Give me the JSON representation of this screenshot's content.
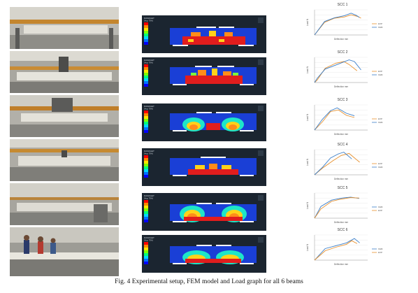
{
  "figure": {
    "caption": "Fig. 4 Experimental setup, FEM model and Load graph for all 6 beams"
  },
  "fem_models": [
    {
      "legend_title": "DAMAGET",
      "legend_sub": "(Avg: 75%)"
    },
    {
      "legend_title": "DAMAGET",
      "legend_sub": "(Avg: 75%)"
    },
    {
      "legend_title": "DAMAGET",
      "legend_sub": "(Avg: 75%)"
    },
    {
      "legend_title": "DAMAGET",
      "legend_sub": "(Avg: 75%)"
    },
    {
      "legend_title": "DAMAGET",
      "legend_sub": "(Avg: 75%)"
    },
    {
      "legend_title": "DAMAGET",
      "legend_sub": "(Avg: 75%)"
    }
  ],
  "chart_data": [
    {
      "type": "line",
      "title": "SCC 1",
      "xlabel": "Deflection mm",
      "ylabel": "Load N",
      "xlim": [
        0,
        1.6
      ],
      "ylim": [
        0,
        300000
      ],
      "series": [
        {
          "name": "EXP",
          "color": "#e8912d",
          "x": [
            0,
            0.3,
            0.6,
            0.9,
            1.1,
            1.3,
            1.4
          ],
          "y": [
            0,
            150000,
            200000,
            215000,
            240000,
            220000,
            200000
          ]
        },
        {
          "name": "FEM",
          "color": "#3a7ec9",
          "x": [
            0,
            0.3,
            0.6,
            0.9,
            1.1,
            1.25,
            1.35
          ],
          "y": [
            0,
            160000,
            205000,
            230000,
            260000,
            235000,
            210000
          ]
        }
      ]
    },
    {
      "type": "line",
      "title": "SCC 2",
      "xlabel": "Deflection mm",
      "ylabel": "Load N",
      "xlim": [
        0,
        2
      ],
      "ylim": [
        0,
        300000
      ],
      "series": [
        {
          "name": "EXP",
          "color": "#e8912d",
          "x": [
            0,
            0.1,
            0.4,
            0.8,
            1.1,
            1.3,
            1.6
          ],
          "y": [
            0,
            30000,
            170000,
            230000,
            250000,
            215000,
            140000
          ]
        },
        {
          "name": "FEM",
          "color": "#3a7ec9",
          "x": [
            0,
            0.1,
            0.4,
            0.9,
            1.3,
            1.5,
            1.75
          ],
          "y": [
            0,
            50000,
            160000,
            220000,
            270000,
            250000,
            150000
          ]
        }
      ]
    },
    {
      "type": "line",
      "title": "SCC 3",
      "xlabel": "Deflection mm",
      "ylabel": "Load N",
      "xlim": [
        0,
        2
      ],
      "ylim": [
        0,
        300000
      ],
      "series": [
        {
          "name": "EXP",
          "color": "#e8912d",
          "x": [
            0,
            0.3,
            0.6,
            0.9,
            1.2,
            1.5
          ],
          "y": [
            0,
            100000,
            220000,
            240000,
            175000,
            150000
          ]
        },
        {
          "name": "FEM",
          "color": "#3a7ec9",
          "x": [
            0,
            0.3,
            0.6,
            0.85,
            1.2,
            1.5
          ],
          "y": [
            0,
            130000,
            230000,
            265000,
            200000,
            170000
          ]
        }
      ]
    },
    {
      "type": "line",
      "title": "SCC 4",
      "xlabel": "Deflection mm",
      "ylabel": "Load N",
      "xlim": [
        0,
        2
      ],
      "ylim": [
        0,
        300000
      ],
      "series": [
        {
          "name": "EXP",
          "color": "#e8912d",
          "x": [
            0,
            0.3,
            0.7,
            1.0,
            1.3,
            1.7
          ],
          "y": [
            0,
            80000,
            170000,
            230000,
            255000,
            150000
          ]
        },
        {
          "name": "FEM",
          "color": "#3a7ec9",
          "x": [
            0,
            0.3,
            0.6,
            0.9,
            1.1,
            1.4
          ],
          "y": [
            0,
            90000,
            200000,
            250000,
            270000,
            190000
          ]
        }
      ]
    },
    {
      "type": "line",
      "title": "SCC 5",
      "xlabel": "Deflection mm",
      "ylabel": "Load N",
      "xlim": [
        0,
        2.5
      ],
      "ylim": [
        0,
        300000
      ],
      "series": [
        {
          "name": "FEM",
          "color": "#3a7ec9",
          "x": [
            0,
            0.3,
            0.8,
            1.3,
            1.7,
            2.1
          ],
          "y": [
            0,
            140000,
            215000,
            240000,
            250000,
            235000
          ]
        },
        {
          "name": "EXP",
          "color": "#e8912d",
          "x": [
            0,
            0.3,
            0.8,
            1.2,
            1.7,
            2.1
          ],
          "y": [
            0,
            110000,
            200000,
            225000,
            245000,
            240000
          ]
        }
      ]
    },
    {
      "type": "line",
      "title": "SCC 6",
      "xlabel": "Deflection mm",
      "ylabel": "Load N",
      "xlim": [
        0,
        2
      ],
      "ylim": [
        0,
        350000
      ],
      "series": [
        {
          "name": "FEM",
          "color": "#3a7ec9",
          "x": [
            0,
            0.4,
            0.8,
            1.2,
            1.5,
            1.7
          ],
          "y": [
            0,
            160000,
            200000,
            240000,
            300000,
            240000
          ]
        },
        {
          "name": "EXP",
          "color": "#e8912d",
          "x": [
            0,
            0.4,
            0.8,
            1.2,
            1.4,
            1.6
          ],
          "y": [
            0,
            130000,
            180000,
            220000,
            270000,
            230000
          ]
        }
      ]
    }
  ]
}
